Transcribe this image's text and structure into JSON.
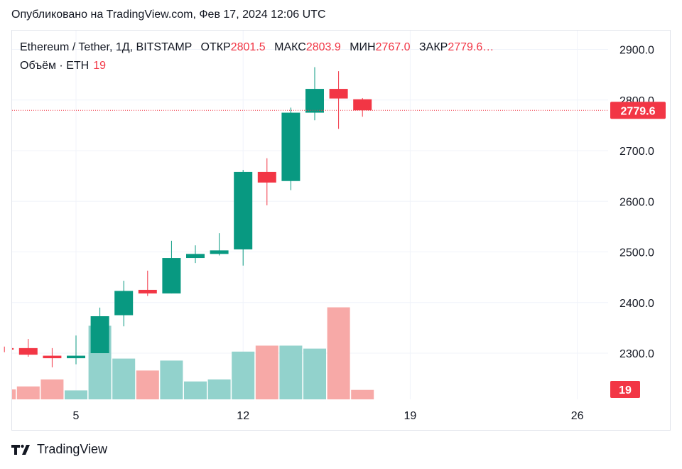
{
  "header": {
    "published": "Опубликовано на TradingView.com, Фев 17, 2024 12:06 UTC"
  },
  "legend": {
    "symbol": "Ethereum / Tether, 1Д, BITSTAMP",
    "open_label": "ОТКР",
    "open": "2801.5",
    "high_label": "МАКС",
    "high": "2803.9",
    "low_label": "МИН",
    "low": "2767.0",
    "close_label": "ЗАКР",
    "close": "2779.6…"
  },
  "volume_legend": {
    "label": "Объём · ETH",
    "value": "19"
  },
  "footer": {
    "brand": "TradingView"
  },
  "colors": {
    "up": "#089981",
    "down": "#f23645",
    "vol_up": "#92d2cc",
    "vol_down": "#f7a9a7",
    "grid": "#f0f3fa"
  },
  "chart_data": {
    "type": "candlestick",
    "x_ticks": [
      "5",
      "12",
      "19",
      "26"
    ],
    "y_ticks": [
      "2300.0",
      "2400.0",
      "2500.0",
      "2600.0",
      "2700.0",
      "2800.0",
      "2900.0"
    ],
    "ylim": [
      2220,
      2920
    ],
    "current_price_label": "2779.6",
    "current_volume_label": "19",
    "grid": true,
    "candles": [
      {
        "day": 2,
        "open": 2310,
        "high": 2313,
        "low": 2302,
        "close": 2307,
        "volume": 20
      },
      {
        "day": 3,
        "open": 2310,
        "high": 2328,
        "low": 2293,
        "close": 2297,
        "volume": 26
      },
      {
        "day": 4,
        "open": 2295,
        "high": 2310,
        "low": 2272,
        "close": 2290,
        "volume": 40
      },
      {
        "day": 5,
        "open": 2290,
        "high": 2335,
        "low": 2278,
        "close": 2295,
        "volume": 18
      },
      {
        "day": 6,
        "open": 2300,
        "high": 2390,
        "low": 2300,
        "close": 2373,
        "volume": 148
      },
      {
        "day": 7,
        "open": 2375,
        "high": 2443,
        "low": 2353,
        "close": 2423,
        "volume": 82
      },
      {
        "day": 8,
        "open": 2425,
        "high": 2463,
        "low": 2413,
        "close": 2418,
        "volume": 58
      },
      {
        "day": 9,
        "open": 2418,
        "high": 2522,
        "low": 2418,
        "close": 2488,
        "volume": 78
      },
      {
        "day": 10,
        "open": 2488,
        "high": 2513,
        "low": 2478,
        "close": 2496,
        "volume": 36
      },
      {
        "day": 11,
        "open": 2496,
        "high": 2537,
        "low": 2493,
        "close": 2503,
        "volume": 40
      },
      {
        "day": 12,
        "open": 2505,
        "high": 2662,
        "low": 2473,
        "close": 2658,
        "volume": 96
      },
      {
        "day": 13,
        "open": 2658,
        "high": 2685,
        "low": 2592,
        "close": 2637,
        "volume": 108
      },
      {
        "day": 14,
        "open": 2640,
        "high": 2785,
        "low": 2622,
        "close": 2775,
        "volume": 108
      },
      {
        "day": 15,
        "open": 2775,
        "high": 2865,
        "low": 2760,
        "close": 2822,
        "volume": 102
      },
      {
        "day": 16,
        "open": 2822,
        "high": 2857,
        "low": 2743,
        "close": 2803,
        "volume": 185
      },
      {
        "day": 17,
        "open": 2801.5,
        "high": 2803.9,
        "low": 2767.0,
        "close": 2779.6,
        "volume": 19
      }
    ],
    "volume_ylim": [
      0,
      200
    ]
  }
}
